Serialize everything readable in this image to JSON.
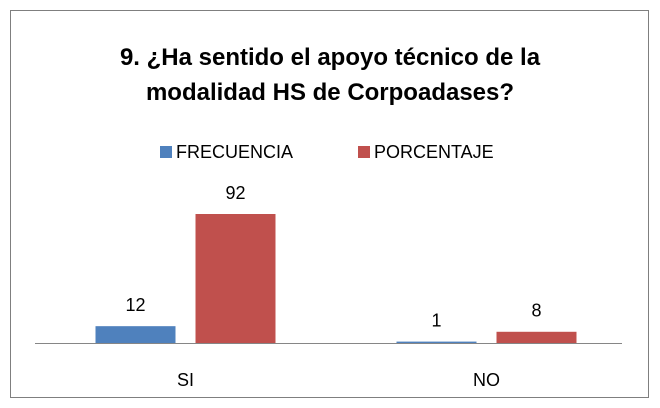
{
  "chart_data": {
    "type": "bar",
    "title": "9. ¿Ha sentido el apoyo técnico de la modalidad HS de Corpoadases?",
    "categories": [
      "SI",
      "NO"
    ],
    "series": [
      {
        "name": "FRECUENCIA",
        "color": "#4f81bd",
        "values": [
          12,
          1
        ]
      },
      {
        "name": "PORCENTAJE",
        "color": "#c0504d",
        "values": [
          92,
          8
        ]
      }
    ],
    "legend": "top"
  }
}
